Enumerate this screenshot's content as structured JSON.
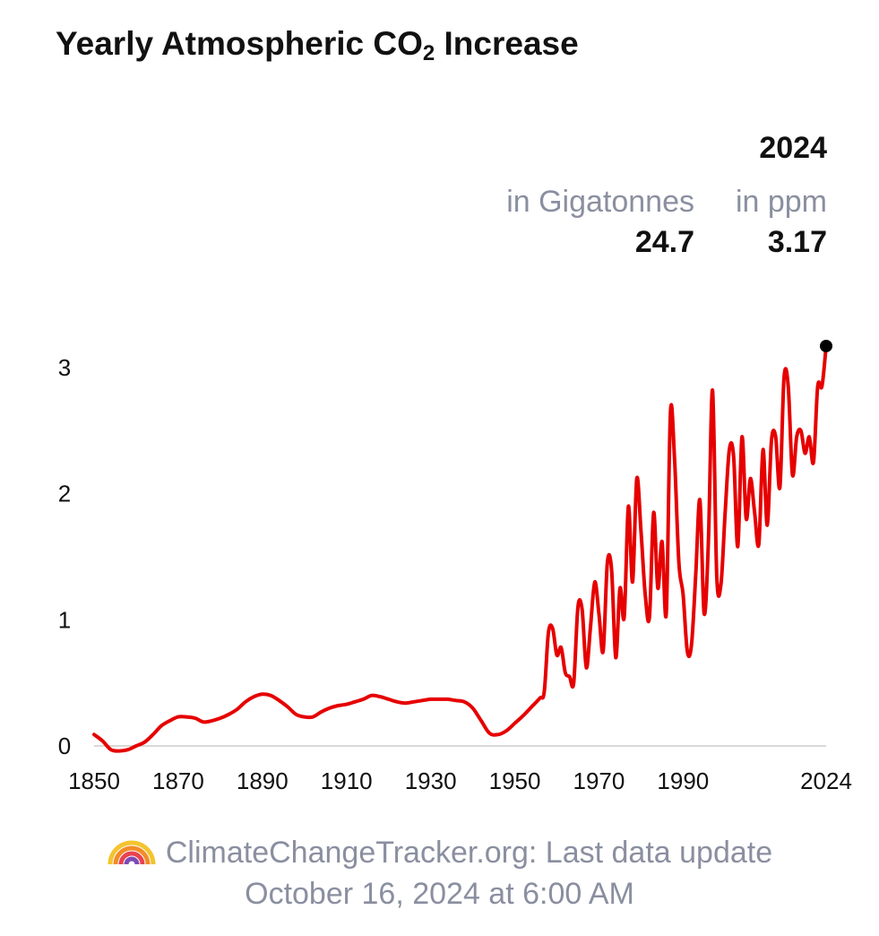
{
  "header": {
    "title_prefix": "Yearly Atmospheric CO",
    "title_sub": "2",
    "title_suffix": " Increase"
  },
  "stats": {
    "year": "2024",
    "gigatonnes_label": "in Gigatonnes",
    "gigatonnes_value": "24.7",
    "ppm_label": "in ppm",
    "ppm_value": "3.17"
  },
  "footer": {
    "line1": "ClimateChangeTracker.org: Last data update",
    "line2": "October 16, 2024 at 6:00 AM",
    "icon": "rainbow-icon"
  },
  "colors": {
    "series": "#e60000",
    "marker": "#000000",
    "axis": "#cccccc"
  },
  "chart_data": {
    "type": "line",
    "title": "Yearly Atmospheric CO2 Increase",
    "xlabel": "",
    "ylabel": "",
    "xlim": [
      1850,
      2024
    ],
    "ylim": [
      0,
      3.17
    ],
    "x_ticks": [
      1850,
      1870,
      1890,
      1910,
      1930,
      1950,
      1970,
      1990,
      2024
    ],
    "y_ticks": [
      0,
      1,
      2,
      3
    ],
    "grid": false,
    "series": [
      {
        "name": "",
        "points": [
          [
            1850,
            0.09
          ],
          [
            1852,
            0.04
          ],
          [
            1854,
            -0.03
          ],
          [
            1856,
            -0.04
          ],
          [
            1858,
            -0.03
          ],
          [
            1860,
            0.0
          ],
          [
            1862,
            0.03
          ],
          [
            1864,
            0.09
          ],
          [
            1866,
            0.16
          ],
          [
            1868,
            0.2
          ],
          [
            1870,
            0.23
          ],
          [
            1872,
            0.23
          ],
          [
            1874,
            0.22
          ],
          [
            1876,
            0.19
          ],
          [
            1878,
            0.2
          ],
          [
            1880,
            0.22
          ],
          [
            1882,
            0.25
          ],
          [
            1884,
            0.29
          ],
          [
            1886,
            0.35
          ],
          [
            1888,
            0.39
          ],
          [
            1890,
            0.41
          ],
          [
            1892,
            0.4
          ],
          [
            1894,
            0.36
          ],
          [
            1896,
            0.31
          ],
          [
            1898,
            0.25
          ],
          [
            1900,
            0.23
          ],
          [
            1902,
            0.23
          ],
          [
            1904,
            0.27
          ],
          [
            1906,
            0.3
          ],
          [
            1908,
            0.32
          ],
          [
            1910,
            0.33
          ],
          [
            1912,
            0.35
          ],
          [
            1914,
            0.37
          ],
          [
            1916,
            0.4
          ],
          [
            1918,
            0.39
          ],
          [
            1920,
            0.37
          ],
          [
            1922,
            0.35
          ],
          [
            1924,
            0.34
          ],
          [
            1926,
            0.35
          ],
          [
            1928,
            0.36
          ],
          [
            1930,
            0.37
          ],
          [
            1932,
            0.37
          ],
          [
            1934,
            0.37
          ],
          [
            1936,
            0.36
          ],
          [
            1938,
            0.35
          ],
          [
            1940,
            0.3
          ],
          [
            1942,
            0.2
          ],
          [
            1944,
            0.1
          ],
          [
            1946,
            0.09
          ],
          [
            1948,
            0.12
          ],
          [
            1950,
            0.18
          ],
          [
            1952,
            0.24
          ],
          [
            1954,
            0.31
          ],
          [
            1956,
            0.38
          ],
          [
            1957,
            0.43
          ],
          [
            1958,
            0.9
          ],
          [
            1959,
            0.93
          ],
          [
            1960,
            0.72
          ],
          [
            1961,
            0.78
          ],
          [
            1962,
            0.58
          ],
          [
            1963,
            0.55
          ],
          [
            1964,
            0.5
          ],
          [
            1965,
            1.1
          ],
          [
            1966,
            1.08
          ],
          [
            1967,
            0.62
          ],
          [
            1968,
            0.95
          ],
          [
            1969,
            1.3
          ],
          [
            1970,
            1.05
          ],
          [
            1971,
            0.75
          ],
          [
            1972,
            1.45
          ],
          [
            1973,
            1.4
          ],
          [
            1974,
            0.7
          ],
          [
            1975,
            1.25
          ],
          [
            1976,
            1.02
          ],
          [
            1977,
            1.9
          ],
          [
            1978,
            1.3
          ],
          [
            1979,
            2.12
          ],
          [
            1980,
            1.7
          ],
          [
            1981,
            1.2
          ],
          [
            1982,
            1.02
          ],
          [
            1983,
            1.85
          ],
          [
            1984,
            1.25
          ],
          [
            1985,
            1.62
          ],
          [
            1986,
            1.05
          ],
          [
            1987,
            2.65
          ],
          [
            1988,
            2.25
          ],
          [
            1989,
            1.45
          ],
          [
            1990,
            1.2
          ],
          [
            1991,
            0.75
          ],
          [
            1992,
            0.8
          ],
          [
            1993,
            1.35
          ],
          [
            1994,
            1.95
          ],
          [
            1995,
            1.05
          ],
          [
            1996,
            1.6
          ],
          [
            1997,
            2.82
          ],
          [
            1998,
            1.35
          ],
          [
            1999,
            1.28
          ],
          [
            2000,
            1.85
          ],
          [
            2001,
            2.35
          ],
          [
            2002,
            2.3
          ],
          [
            2003,
            1.58
          ],
          [
            2004,
            2.45
          ],
          [
            2005,
            1.8
          ],
          [
            2006,
            2.12
          ],
          [
            2007,
            1.85
          ],
          [
            2008,
            1.6
          ],
          [
            2009,
            2.35
          ],
          [
            2010,
            1.75
          ],
          [
            2011,
            2.42
          ],
          [
            2012,
            2.45
          ],
          [
            2013,
            2.05
          ],
          [
            2014,
            2.92
          ],
          [
            2015,
            2.85
          ],
          [
            2016,
            2.15
          ],
          [
            2017,
            2.45
          ],
          [
            2018,
            2.5
          ],
          [
            2019,
            2.32
          ],
          [
            2020,
            2.45
          ],
          [
            2021,
            2.25
          ],
          [
            2022,
            2.85
          ],
          [
            2023,
            2.85
          ],
          [
            2024,
            3.17
          ]
        ]
      }
    ],
    "highlight_point": {
      "x": 2024,
      "y": 3.17
    }
  }
}
